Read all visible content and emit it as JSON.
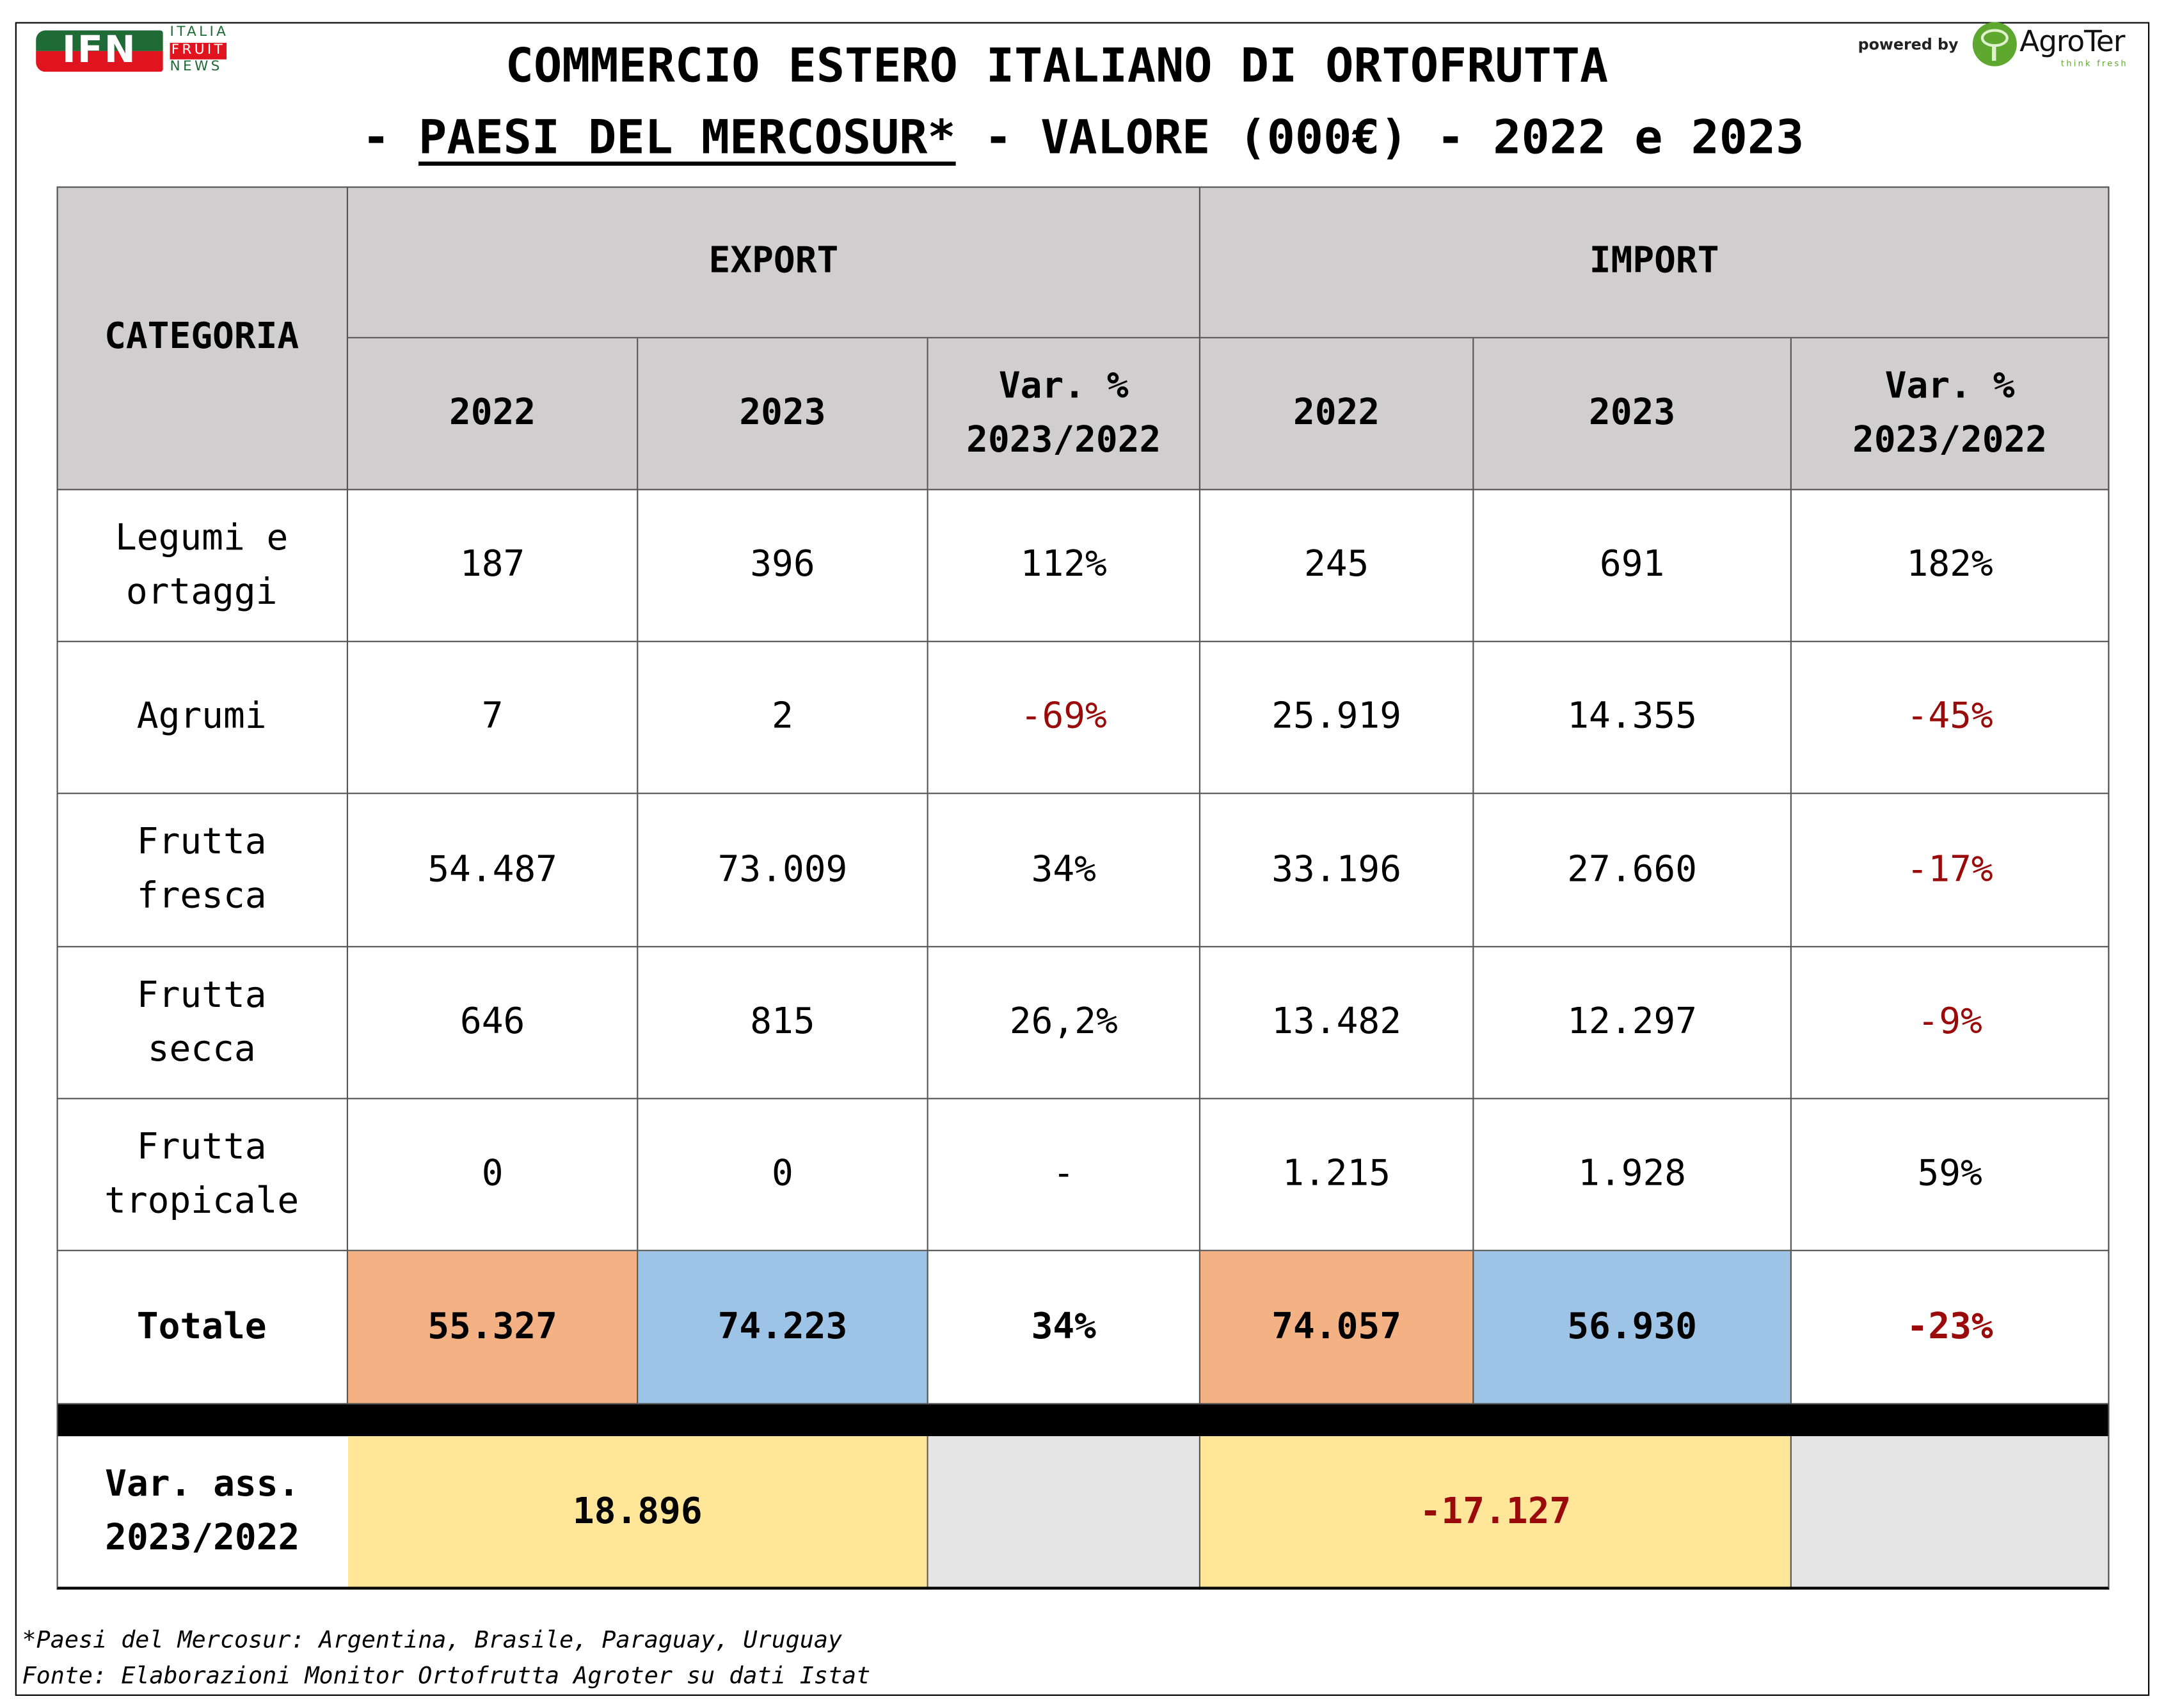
{
  "branding": {
    "ifn_logo_text": "IFN",
    "ifn_words": [
      "ITALIA",
      "FRUIT",
      "NEWS"
    ],
    "powered_by": "powered by",
    "agroter_name": "AgroTer",
    "agroter_tagline": "think fresh"
  },
  "title": {
    "line1": "COMMERCIO ESTERO ITALIANO DI ORTOFRUTTA",
    "line2_prefix": "- ",
    "line2_underlined": "PAESI DEL MERCOSUR*",
    "line2_suffix": " - VALORE (000€) - 2022 e 2023"
  },
  "table": {
    "header": {
      "categoria": "CATEGORIA",
      "export": "EXPORT",
      "import": "IMPORT",
      "year_2022": "2022",
      "year_2023": "2023",
      "var_pct": "Var. %",
      "var_period": "2023/2022"
    },
    "rows": [
      {
        "category": [
          "Legumi e",
          "ortaggi"
        ],
        "exp_2022": "187",
        "exp_2023": "396",
        "exp_var": "112%",
        "imp_2022": "245",
        "imp_2023": "691",
        "imp_var": "182%"
      },
      {
        "category": [
          "Agrumi"
        ],
        "exp_2022": "7",
        "exp_2023": "2",
        "exp_var": "-69%",
        "imp_2022": "25.919",
        "imp_2023": "14.355",
        "imp_var": "-45%"
      },
      {
        "category": [
          "Frutta",
          "fresca"
        ],
        "exp_2022": "54.487",
        "exp_2023": "73.009",
        "exp_var": "34%",
        "imp_2022": "33.196",
        "imp_2023": "27.660",
        "imp_var": "-17%"
      },
      {
        "category": [
          "Frutta",
          "secca"
        ],
        "exp_2022": "646",
        "exp_2023": "815",
        "exp_var": "26,2%",
        "imp_2022": "13.482",
        "imp_2023": "12.297",
        "imp_var": "-9%"
      },
      {
        "category": [
          "Frutta",
          "tropicale"
        ],
        "exp_2022": "0",
        "exp_2023": "0",
        "exp_var": "-",
        "imp_2022": "1.215",
        "imp_2023": "1.928",
        "imp_var": "59%"
      }
    ],
    "total": {
      "label": "Totale",
      "exp_2022": "55.327",
      "exp_2023": "74.223",
      "exp_var": "34%",
      "imp_2022": "74.057",
      "imp_2023": "56.930",
      "imp_var": "-23%"
    },
    "var_ass": {
      "label_line1": "Var. ass.",
      "label_line2": "2023/2022",
      "export": "18.896",
      "import": "-17.127"
    }
  },
  "footnotes": {
    "mercosur": "*Paesi del Mercosur: Argentina, Brasile, Paraguay, Uruguay",
    "source": "Fonte: Elaborazioni Monitor Ortofrutta Agroter su dati Istat"
  },
  "colors": {
    "header_bg": "#d0cecf",
    "total_2022_bg": "#f4b183",
    "total_2023_bg": "#9dc3e6",
    "var_ass_bg": "#ffe699",
    "empty_bg": "#e6e5e5",
    "negative_text": "#9b0a0a"
  }
}
